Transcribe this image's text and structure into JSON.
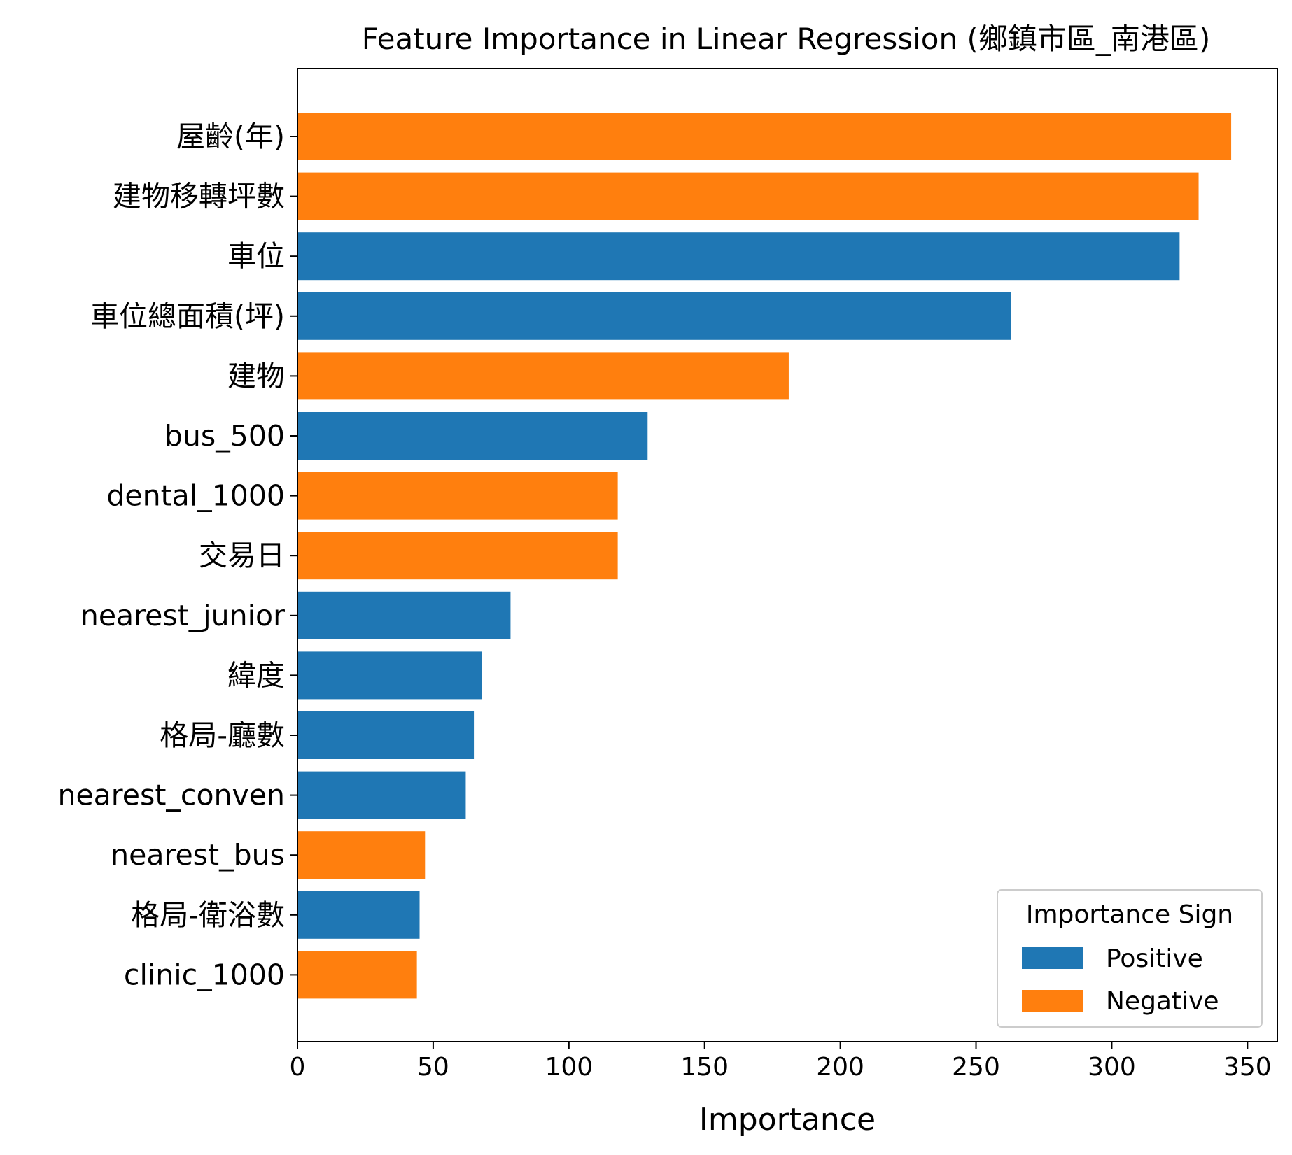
{
  "chart_data": {
    "type": "bar",
    "orientation": "horizontal",
    "title": "Feature Importance in Linear Regression (鄉鎮市區_南港區)",
    "xlabel": "Importance",
    "ylabel": "",
    "xlim": [
      0,
      361
    ],
    "xticks": [
      0,
      50,
      100,
      150,
      200,
      250,
      300,
      350
    ],
    "grid": false,
    "legend": {
      "title": "Importance Sign",
      "placement": "lower-right",
      "entries": [
        {
          "label": "Positive",
          "color": "#1f77b4"
        },
        {
          "label": "Negative",
          "color": "#ff7f0e"
        }
      ]
    },
    "categories": [
      "屋齡(年)",
      "建物移轉坪數",
      "車位",
      "車位總面積(坪)",
      "建物",
      "bus_500",
      "dental_1000",
      "交易日",
      "nearest_junior",
      "緯度",
      "格局-廳數",
      "nearest_conven",
      "nearest_bus",
      "格局-衛浴數",
      "clinic_1000"
    ],
    "values": [
      344,
      332,
      325,
      263,
      181,
      129,
      118,
      118,
      78.5,
      68,
      65,
      62,
      47,
      45,
      44
    ],
    "signs": [
      "Negative",
      "Negative",
      "Positive",
      "Positive",
      "Negative",
      "Positive",
      "Negative",
      "Negative",
      "Positive",
      "Positive",
      "Positive",
      "Positive",
      "Negative",
      "Positive",
      "Negative"
    ]
  }
}
